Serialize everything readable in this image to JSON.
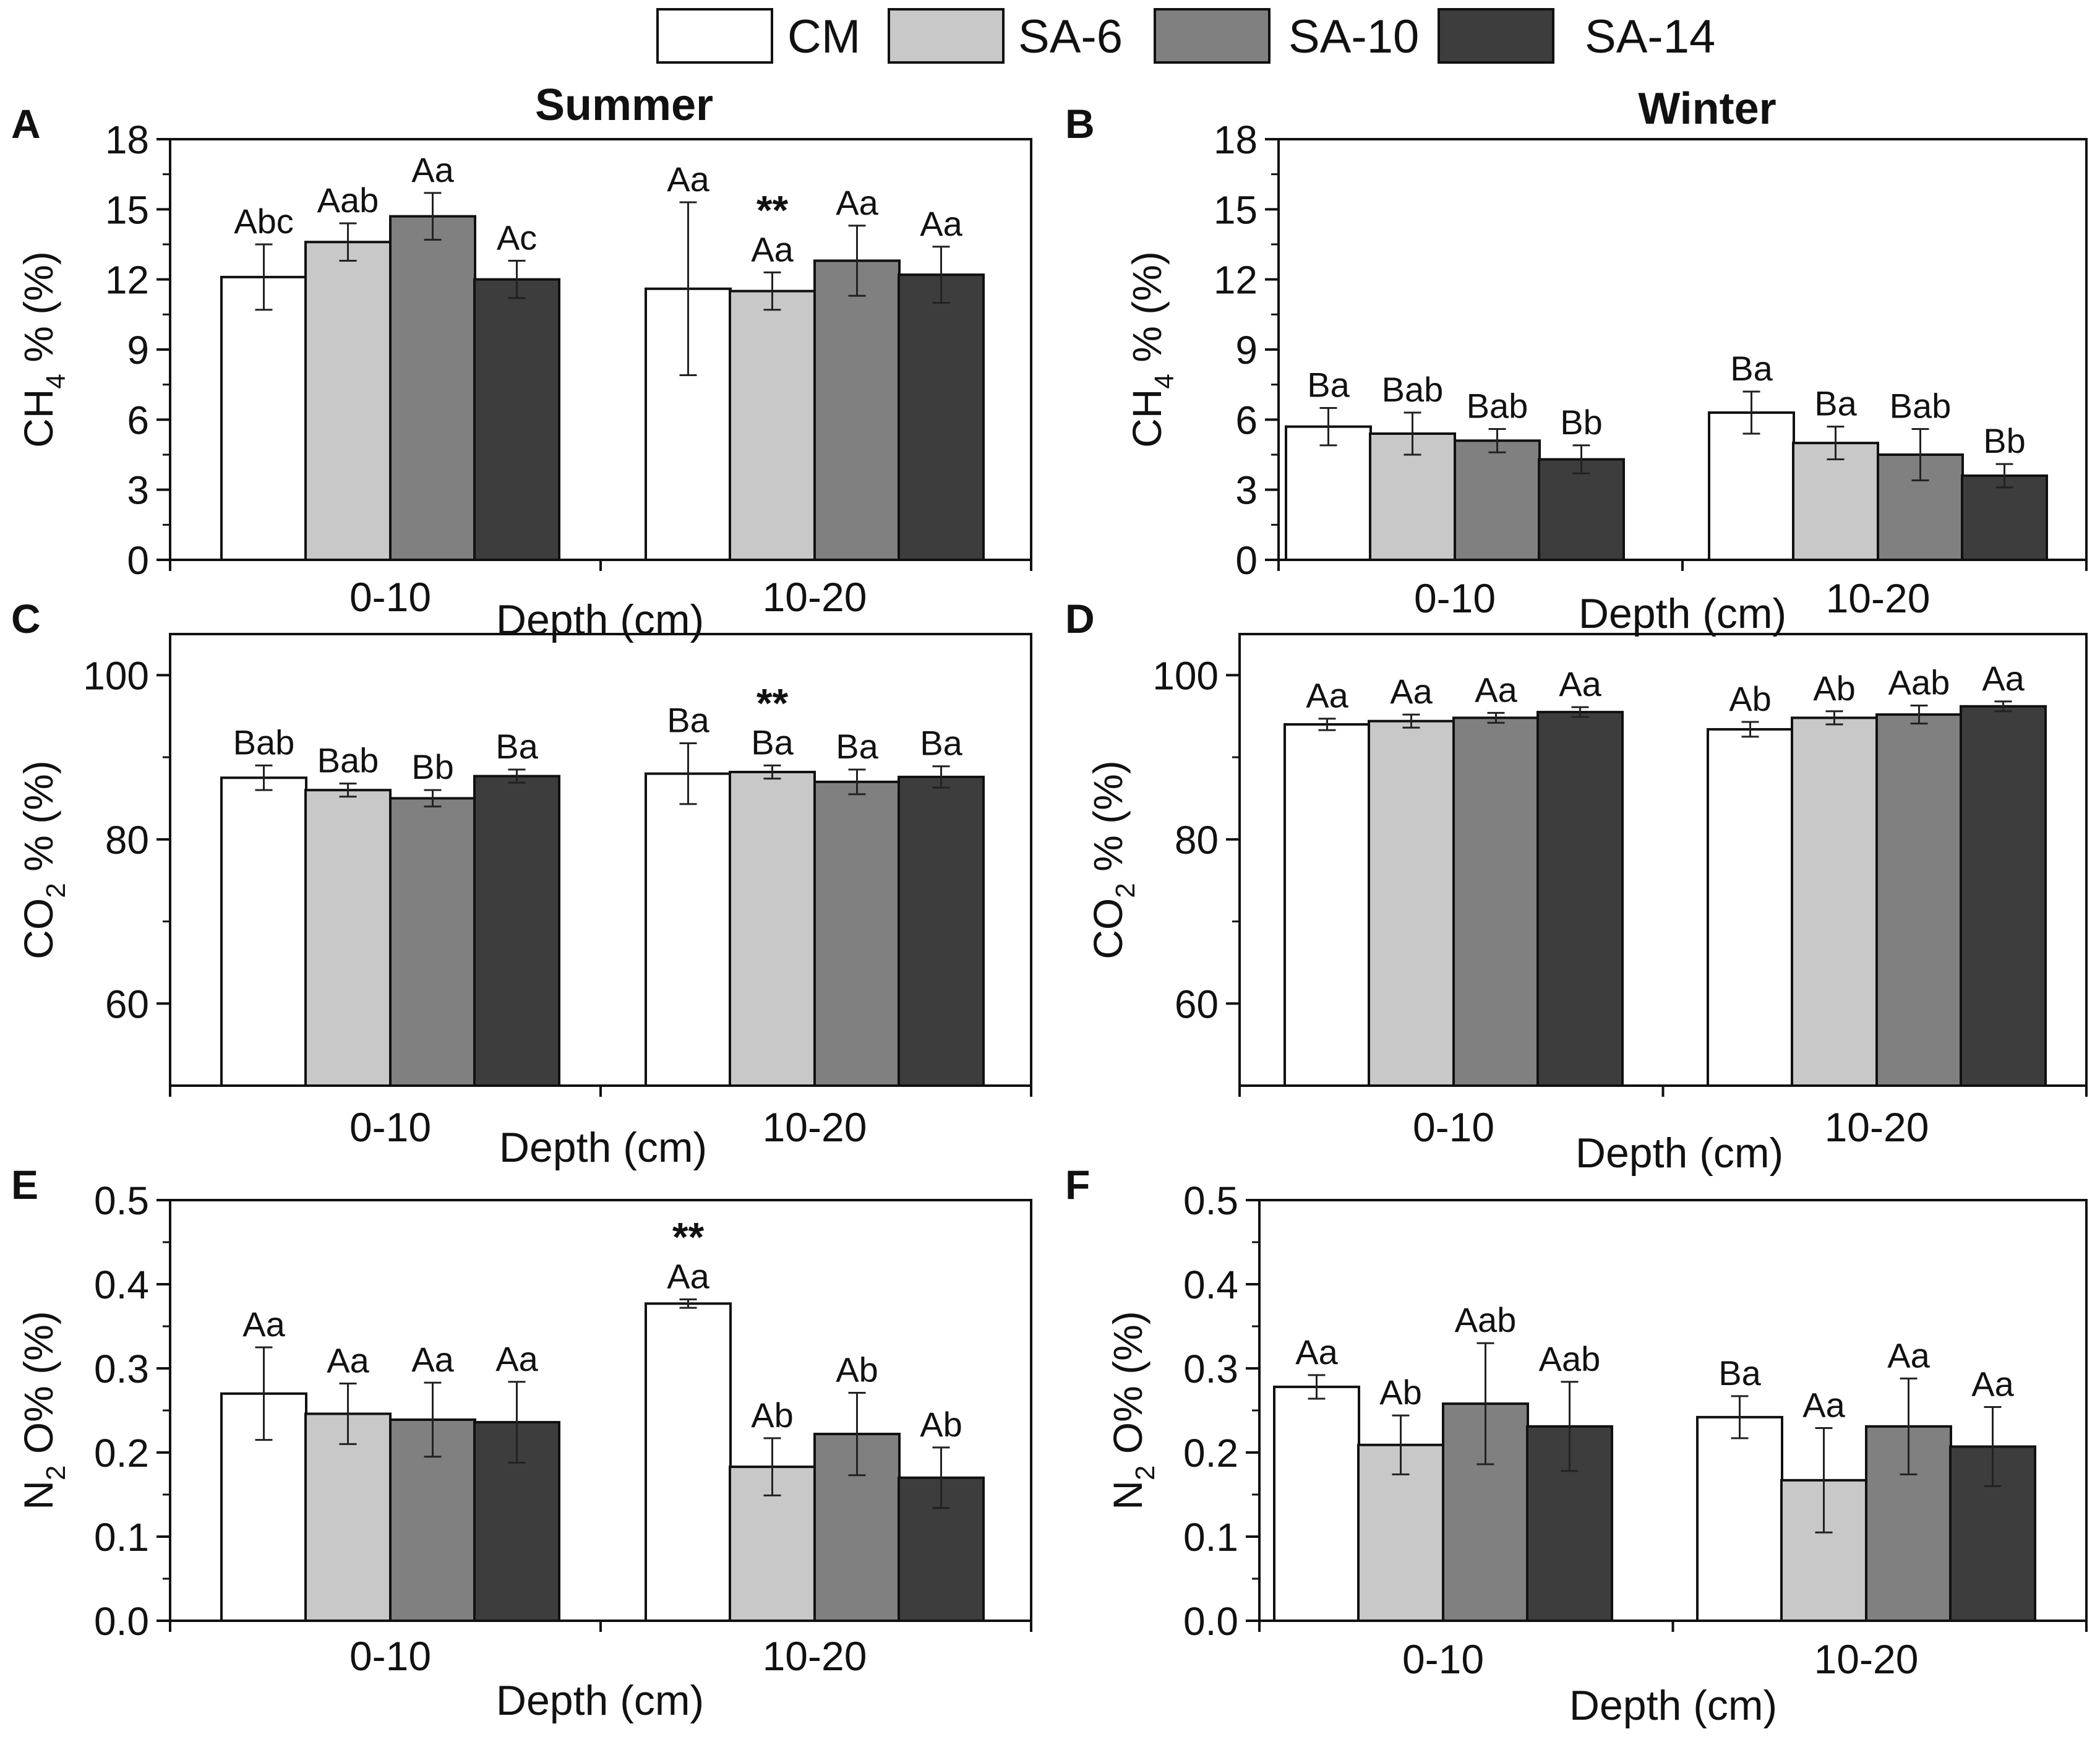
{
  "figure": {
    "column_titles": [
      "Summer",
      "Winter"
    ],
    "x_axis_label": "Depth (cm)",
    "categories": [
      "0-10",
      "10-20"
    ],
    "legend": [
      {
        "name": "CM",
        "color": "#ffffff"
      },
      {
        "name": "SA-6",
        "color": "#c8c8c8"
      },
      {
        "name": "SA-10",
        "color": "#808080"
      },
      {
        "name": "SA-14",
        "color": "#3d3d3d"
      }
    ],
    "significance_marker": "**"
  },
  "chart_data": [
    {
      "panel": "A",
      "season": "Summer",
      "type": "bar",
      "ylabel": {
        "main": "CH",
        "sub": "4",
        "rest": "% (%)"
      },
      "ylim": [
        0,
        18
      ],
      "yticks": [
        0,
        3,
        6,
        9,
        12,
        15,
        18
      ],
      "yticklabels": [
        "0",
        "3",
        "6",
        "9",
        "12",
        "15",
        "18"
      ],
      "categories": [
        "0-10",
        "10-20"
      ],
      "series": [
        {
          "name": "CM",
          "values": [
            12.1,
            11.6
          ],
          "errors": [
            1.4,
            3.7
          ],
          "labels": [
            "Abc",
            "Aa"
          ]
        },
        {
          "name": "SA-6",
          "values": [
            13.6,
            11.5
          ],
          "errors": [
            0.8,
            0.8
          ],
          "labels": [
            "Aab",
            "Aa"
          ]
        },
        {
          "name": "SA-10",
          "values": [
            14.7,
            12.8
          ],
          "errors": [
            1.0,
            1.5
          ],
          "labels": [
            "Aa",
            "Aa"
          ]
        },
        {
          "name": "SA-14",
          "values": [
            12.0,
            12.2
          ],
          "errors": [
            0.8,
            1.2
          ],
          "labels": [
            "Ac",
            "Aa"
          ]
        }
      ],
      "marks": [
        {
          "series": 1,
          "category": 1,
          "text": "**"
        }
      ]
    },
    {
      "panel": "B",
      "season": "Winter",
      "type": "bar",
      "ylabel": {
        "main": "CH",
        "sub": "4",
        "rest": "% (%)"
      },
      "ylim": [
        0,
        18
      ],
      "yticks": [
        0,
        3,
        6,
        9,
        12,
        15,
        18
      ],
      "yticklabels": [
        "0",
        "3",
        "6",
        "9",
        "12",
        "15",
        "18"
      ],
      "categories": [
        "0-10",
        "10-20"
      ],
      "series": [
        {
          "name": "CM",
          "values": [
            5.7,
            6.3
          ],
          "errors": [
            0.8,
            0.9
          ],
          "labels": [
            "Ba",
            "Ba"
          ]
        },
        {
          "name": "SA-6",
          "values": [
            5.4,
            5.0
          ],
          "errors": [
            0.9,
            0.7
          ],
          "labels": [
            "Bab",
            "Ba"
          ]
        },
        {
          "name": "SA-10",
          "values": [
            5.1,
            4.5
          ],
          "errors": [
            0.5,
            1.1
          ],
          "labels": [
            "Bab",
            "Bab"
          ]
        },
        {
          "name": "SA-14",
          "values": [
            4.3,
            3.6
          ],
          "errors": [
            0.6,
            0.5
          ],
          "labels": [
            "Bb",
            "Bb"
          ]
        }
      ],
      "marks": []
    },
    {
      "panel": "C",
      "season": "Summer",
      "type": "bar",
      "ylabel": {
        "main": "CO",
        "sub": "2",
        "rest": "% (%)"
      },
      "ylim": [
        50,
        105
      ],
      "yticks": [
        60,
        80,
        100
      ],
      "yticklabels": [
        "60",
        "80",
        "100"
      ],
      "categories": [
        "0-10",
        "10-20"
      ],
      "series": [
        {
          "name": "CM",
          "values": [
            87.5,
            88.0
          ],
          "errors": [
            1.5,
            3.7
          ],
          "labels": [
            "Bab",
            "Ba"
          ]
        },
        {
          "name": "SA-6",
          "values": [
            86.0,
            88.2
          ],
          "errors": [
            0.8,
            0.8
          ],
          "labels": [
            "Bab",
            "Ba"
          ]
        },
        {
          "name": "SA-10",
          "values": [
            85.0,
            87.0
          ],
          "errors": [
            1.0,
            1.5
          ],
          "labels": [
            "Bb",
            "Ba"
          ]
        },
        {
          "name": "SA-14",
          "values": [
            87.7,
            87.6
          ],
          "errors": [
            0.8,
            1.3
          ],
          "labels": [
            "Ba",
            "Ba"
          ]
        }
      ],
      "marks": [
        {
          "series": 1,
          "category": 1,
          "text": "**"
        }
      ]
    },
    {
      "panel": "D",
      "season": "Winter",
      "type": "bar",
      "ylabel": {
        "main": "CO",
        "sub": "2",
        "rest": "% (%)"
      },
      "ylim": [
        50,
        105
      ],
      "yticks": [
        60,
        80,
        100
      ],
      "yticklabels": [
        "60",
        "80",
        "100"
      ],
      "categories": [
        "0-10",
        "10-20"
      ],
      "series": [
        {
          "name": "CM",
          "values": [
            94.0,
            93.4
          ],
          "errors": [
            0.7,
            0.9
          ],
          "labels": [
            "Aa",
            "Ab"
          ]
        },
        {
          "name": "SA-6",
          "values": [
            94.4,
            94.8
          ],
          "errors": [
            0.8,
            0.8
          ],
          "labels": [
            "Aa",
            "Ab"
          ]
        },
        {
          "name": "SA-10",
          "values": [
            94.8,
            95.2
          ],
          "errors": [
            0.6,
            1.1
          ],
          "labels": [
            "Aa",
            "Aab"
          ]
        },
        {
          "name": "SA-14",
          "values": [
            95.5,
            96.2
          ],
          "errors": [
            0.6,
            0.6
          ],
          "labels": [
            "Aa",
            "Aa"
          ]
        }
      ],
      "marks": []
    },
    {
      "panel": "E",
      "season": "Summer",
      "type": "bar",
      "ylabel": {
        "main": "N",
        "sub": "2",
        "rest": "O% (%)"
      },
      "ylim": [
        0,
        0.5
      ],
      "yticks": [
        0,
        0.1,
        0.2,
        0.3,
        0.4,
        0.5
      ],
      "yticklabels": [
        "0.0",
        "0.1",
        "0.2",
        "0.3",
        "0.4",
        "0.5"
      ],
      "categories": [
        "0-10",
        "10-20"
      ],
      "series": [
        {
          "name": "CM",
          "values": [
            0.27,
            0.377
          ],
          "errors": [
            0.055,
            0.005
          ],
          "labels": [
            "Aa",
            "Aa"
          ]
        },
        {
          "name": "SA-6",
          "values": [
            0.246,
            0.183
          ],
          "errors": [
            0.036,
            0.034
          ],
          "labels": [
            "Aa",
            "Ab"
          ]
        },
        {
          "name": "SA-10",
          "values": [
            0.239,
            0.222
          ],
          "errors": [
            0.044,
            0.049
          ],
          "labels": [
            "Aa",
            "Ab"
          ]
        },
        {
          "name": "SA-14",
          "values": [
            0.236,
            0.17
          ],
          "errors": [
            0.048,
            0.036
          ],
          "labels": [
            "Aa",
            "Ab"
          ]
        }
      ],
      "marks": [
        {
          "series": 0,
          "category": 1,
          "text": "**"
        }
      ]
    },
    {
      "panel": "F",
      "season": "Winter",
      "type": "bar",
      "ylabel": {
        "main": "N",
        "sub": "2",
        "rest": "O% (%)"
      },
      "ylim": [
        0,
        0.5
      ],
      "yticks": [
        0,
        0.1,
        0.2,
        0.3,
        0.4,
        0.5
      ],
      "yticklabels": [
        "0.0",
        "0.1",
        "0.2",
        "0.3",
        "0.4",
        "0.5"
      ],
      "categories": [
        "0-10",
        "10-20"
      ],
      "series": [
        {
          "name": "CM",
          "values": [
            0.278,
            0.242
          ],
          "errors": [
            0.014,
            0.025
          ],
          "labels": [
            "Aa",
            "Ba"
          ]
        },
        {
          "name": "SA-6",
          "values": [
            0.209,
            0.167
          ],
          "errors": [
            0.035,
            0.062
          ],
          "labels": [
            "Ab",
            "Aa"
          ]
        },
        {
          "name": "SA-10",
          "values": [
            0.258,
            0.231
          ],
          "errors": [
            0.072,
            0.057
          ],
          "labels": [
            "Aab",
            "Aa"
          ]
        },
        {
          "name": "SA-14",
          "values": [
            0.231,
            0.207
          ],
          "errors": [
            0.053,
            0.047
          ],
          "labels": [
            "Aab",
            "Aa"
          ]
        }
      ],
      "marks": []
    }
  ]
}
